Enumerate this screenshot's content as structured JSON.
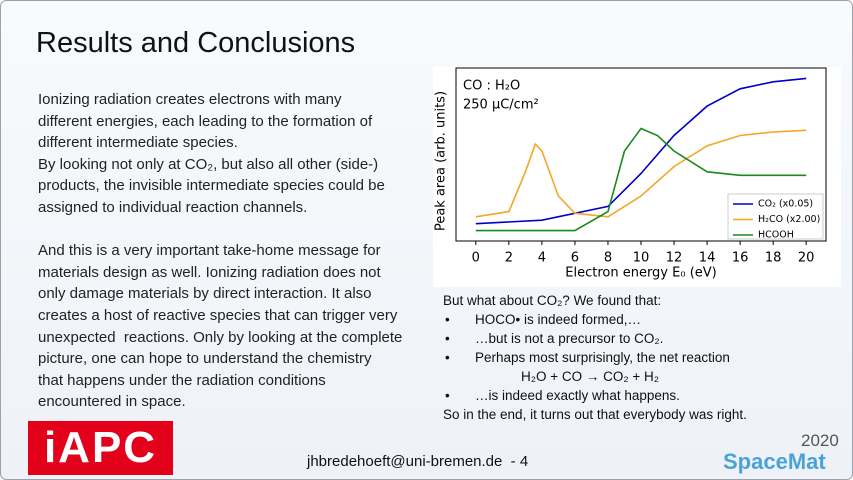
{
  "title": "Results and Conclusions",
  "left_text": [
    [
      "Ionizing radiation creates electrons with many",
      "different energies, each leading to the formation of",
      "different intermediate species.",
      "By looking not only at CO₂, but also all other (side-)",
      "products, the invisible intermediate species could be",
      "assigned to individual reaction channels."
    ],
    [
      "And this is a very important take-home message for",
      "materials design as well. Ionizing radiation does not",
      "only damage materials by direct interaction. It also",
      "creates a host of reactive species that can trigger very",
      "unexpected  reactions. Only by looking at the complete",
      "picture, one can hope to understand the chemistry",
      "that happens under the radiation conditions",
      "encountered in space."
    ]
  ],
  "right_text": {
    "intro": "But what about CO₂? We found that:",
    "bullets": [
      "HOCO• is indeed formed,…",
      "…but is not a precursor to CO₂.",
      "Perhaps most surprisingly, the net reaction"
    ],
    "equation": "H₂O + CO → CO₂ + H₂",
    "bullets_after": [
      "…is indeed exactly what happens."
    ],
    "conclusion": "So in the end, it turns out that everybody was right."
  },
  "chart_data": {
    "type": "line",
    "annotations": [
      "CO : H₂O",
      "250 µC/cm²"
    ],
    "x_label": "Electron energy E₀ (eV)",
    "y_label": "Peak area (arb. units)",
    "xlim": [
      -1.2,
      21.2
    ],
    "xticks": [
      0,
      2,
      4,
      6,
      8,
      10,
      12,
      14,
      16,
      18,
      20
    ],
    "ylim": [
      0,
      1
    ],
    "yticks": [],
    "legend": "lower right",
    "series": [
      {
        "name": "CO₂ (x0.05)",
        "color": "#0000cc",
        "x": [
          0,
          4,
          8,
          10,
          12,
          14,
          16,
          18,
          20
        ],
        "values": [
          0.1,
          0.12,
          0.2,
          0.39,
          0.61,
          0.78,
          0.88,
          0.92,
          0.94
        ]
      },
      {
        "name": "H₂CO (x2.00)",
        "color": "#f5a623",
        "x": [
          0,
          2,
          3,
          3.6,
          4,
          5,
          6,
          8,
          10,
          12,
          14,
          16,
          18,
          20
        ],
        "values": [
          0.14,
          0.17,
          0.4,
          0.56,
          0.52,
          0.26,
          0.16,
          0.14,
          0.26,
          0.43,
          0.55,
          0.61,
          0.63,
          0.64
        ]
      },
      {
        "name": "HCOOH",
        "color": "#1a8a1a",
        "x": [
          0,
          6,
          8,
          9,
          10,
          11,
          12,
          14,
          16,
          20
        ],
        "values": [
          0.06,
          0.06,
          0.17,
          0.52,
          0.65,
          0.61,
          0.52,
          0.4,
          0.38,
          0.38
        ]
      }
    ]
  },
  "footer": "jhbredehoeft@uni-bremen.de  - 4",
  "logos": {
    "iapc": "iAPC",
    "year": "2020",
    "spacemat": "SpaceMat"
  }
}
